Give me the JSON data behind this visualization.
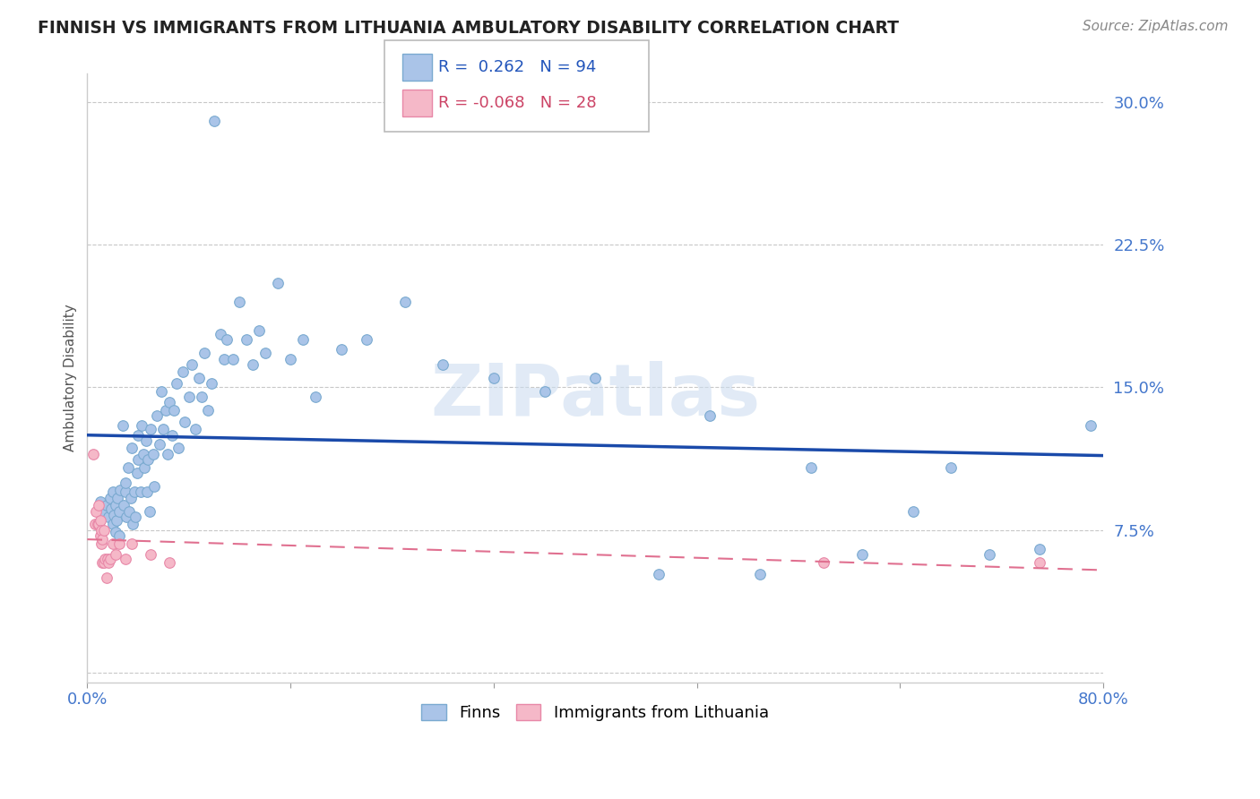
{
  "title": "FINNISH VS IMMIGRANTS FROM LITHUANIA AMBULATORY DISABILITY CORRELATION CHART",
  "source": "Source: ZipAtlas.com",
  "ylabel": "Ambulatory Disability",
  "xlim": [
    0.0,
    0.8
  ],
  "ylim": [
    -0.005,
    0.315
  ],
  "yticks": [
    0.0,
    0.075,
    0.15,
    0.225,
    0.3
  ],
  "ytick_labels": [
    "",
    "7.5%",
    "15.0%",
    "22.5%",
    "30.0%"
  ],
  "background_color": "#ffffff",
  "grid_color": "#c8c8c8",
  "finns_color": "#aac4e8",
  "finns_edge_color": "#7aaad0",
  "immigrants_color": "#f5b8c8",
  "immigrants_edge_color": "#e888a8",
  "trend_finns_color": "#1a4aaa",
  "trend_immigrants_color": "#e07090",
  "legend_R_finns": "0.262",
  "legend_N_finns": "94",
  "legend_R_immigrants": "-0.068",
  "legend_N_immigrants": "28",
  "watermark": "ZIPatlas",
  "finns_x": [
    0.01,
    0.012,
    0.015,
    0.017,
    0.018,
    0.019,
    0.02,
    0.02,
    0.021,
    0.022,
    0.022,
    0.023,
    0.024,
    0.025,
    0.025,
    0.026,
    0.028,
    0.029,
    0.03,
    0.03,
    0.031,
    0.032,
    0.033,
    0.034,
    0.035,
    0.036,
    0.037,
    0.038,
    0.039,
    0.04,
    0.04,
    0.042,
    0.043,
    0.044,
    0.045,
    0.046,
    0.047,
    0.048,
    0.049,
    0.05,
    0.052,
    0.053,
    0.055,
    0.057,
    0.058,
    0.06,
    0.062,
    0.063,
    0.065,
    0.067,
    0.068,
    0.07,
    0.072,
    0.075,
    0.077,
    0.08,
    0.082,
    0.085,
    0.088,
    0.09,
    0.092,
    0.095,
    0.098,
    0.1,
    0.105,
    0.108,
    0.11,
    0.115,
    0.12,
    0.125,
    0.13,
    0.135,
    0.14,
    0.15,
    0.16,
    0.17,
    0.18,
    0.2,
    0.22,
    0.25,
    0.28,
    0.32,
    0.36,
    0.4,
    0.45,
    0.49,
    0.53,
    0.57,
    0.61,
    0.65,
    0.68,
    0.71,
    0.75,
    0.79
  ],
  "finns_y": [
    0.09,
    0.085,
    0.088,
    0.082,
    0.092,
    0.086,
    0.078,
    0.095,
    0.083,
    0.088,
    0.074,
    0.08,
    0.092,
    0.085,
    0.072,
    0.096,
    0.13,
    0.088,
    0.095,
    0.1,
    0.082,
    0.108,
    0.085,
    0.092,
    0.118,
    0.078,
    0.095,
    0.082,
    0.105,
    0.125,
    0.112,
    0.095,
    0.13,
    0.115,
    0.108,
    0.122,
    0.095,
    0.112,
    0.085,
    0.128,
    0.115,
    0.098,
    0.135,
    0.12,
    0.148,
    0.128,
    0.138,
    0.115,
    0.142,
    0.125,
    0.138,
    0.152,
    0.118,
    0.158,
    0.132,
    0.145,
    0.162,
    0.128,
    0.155,
    0.145,
    0.168,
    0.138,
    0.152,
    0.29,
    0.178,
    0.165,
    0.175,
    0.165,
    0.195,
    0.175,
    0.162,
    0.18,
    0.168,
    0.205,
    0.165,
    0.175,
    0.145,
    0.17,
    0.175,
    0.195,
    0.162,
    0.155,
    0.148,
    0.155,
    0.052,
    0.135,
    0.052,
    0.108,
    0.062,
    0.085,
    0.108,
    0.062,
    0.065,
    0.13
  ],
  "immigrants_x": [
    0.005,
    0.006,
    0.007,
    0.008,
    0.009,
    0.009,
    0.01,
    0.01,
    0.011,
    0.011,
    0.012,
    0.012,
    0.013,
    0.013,
    0.014,
    0.015,
    0.016,
    0.017,
    0.018,
    0.02,
    0.022,
    0.025,
    0.03,
    0.035,
    0.05,
    0.065,
    0.58,
    0.75
  ],
  "immigrants_y": [
    0.115,
    0.078,
    0.085,
    0.078,
    0.088,
    0.078,
    0.08,
    0.072,
    0.075,
    0.068,
    0.07,
    0.058,
    0.075,
    0.058,
    0.06,
    0.05,
    0.06,
    0.058,
    0.06,
    0.068,
    0.062,
    0.068,
    0.06,
    0.068,
    0.062,
    0.058,
    0.058,
    0.058
  ]
}
